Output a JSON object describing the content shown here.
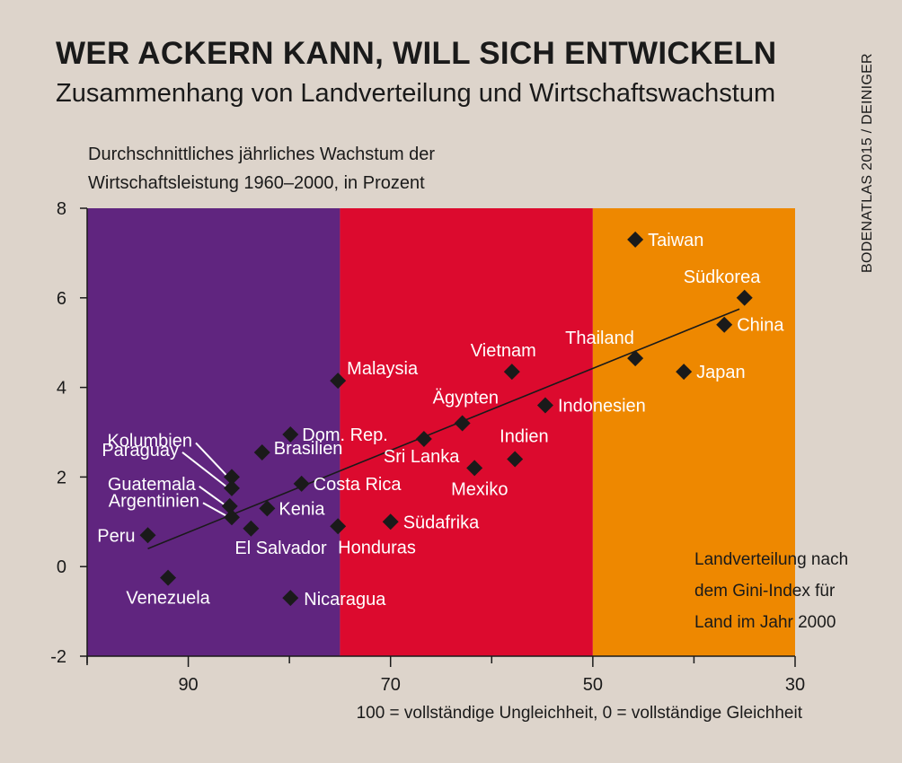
{
  "header": {
    "title": "WER ACKERN KANN, WILL SICH ENTWICKELN",
    "subtitle": "Zusammenhang von Landverteilung und Wirtschaftswachstum",
    "credit": "BODENATLAS 2015 / DEINIGER"
  },
  "chart_data": {
    "type": "scatter",
    "title": "WER ACKERN KANN, WILL SICH ENTWICKELN",
    "subtitle": "Zusammenhang von Landverteilung und Wirtschaftswachstum",
    "ylabel_lines": [
      "Durchschnittliches jährliches Wachstum der",
      "Wirtschaftsleistung 1960–2000, in Prozent"
    ],
    "xlabel": "100 = vollständige Ungleichheit, 0 = vollständige Gleichheit",
    "xlim": [
      100,
      30
    ],
    "ylim": [
      -2,
      8
    ],
    "x_ticks": [
      90,
      70,
      50,
      30
    ],
    "y_ticks": [
      -2,
      0,
      2,
      4,
      6,
      8
    ],
    "grid": false,
    "background_bands": [
      {
        "x_from": 100,
        "x_to": 75,
        "color": "#60257f"
      },
      {
        "x_from": 75,
        "x_to": 50,
        "color": "#dc0a2e"
      },
      {
        "x_from": 50,
        "x_to": 30,
        "color": "#ee8800"
      }
    ],
    "legend_lines": [
      "Landverteilung nach",
      "dem Gini-Index für",
      "Land im Jahr 2000"
    ],
    "legend_position": "bottom-right",
    "trend_line": {
      "from": [
        94,
        0.4
      ],
      "to": [
        35.5,
        5.75
      ]
    },
    "points": [
      {
        "label": "Peru",
        "x": 94,
        "y": 0.7
      },
      {
        "label": "Venezuela",
        "x": 92,
        "y": -0.25
      },
      {
        "label": "Kolumbien",
        "x": 85.7,
        "y": 2.0
      },
      {
        "label": "Paraguay",
        "x": 85.7,
        "y": 1.75
      },
      {
        "label": "Guatemala",
        "x": 85.9,
        "y": 1.35
      },
      {
        "label": "Argentinien",
        "x": 85.7,
        "y": 1.1
      },
      {
        "label": "El Salvador",
        "x": 83.8,
        "y": 0.85
      },
      {
        "label": "Brasilien",
        "x": 82.7,
        "y": 2.55
      },
      {
        "label": "Kenia",
        "x": 82.2,
        "y": 1.3
      },
      {
        "label": "Dom. Rep.",
        "x": 79.9,
        "y": 2.95
      },
      {
        "label": "Nicaragua",
        "x": 79.9,
        "y": -0.7
      },
      {
        "label": "Costa Rica",
        "x": 78.8,
        "y": 1.85
      },
      {
        "label": "Malaysia",
        "x": 75.2,
        "y": 4.15
      },
      {
        "label": "Honduras",
        "x": 75.2,
        "y": 0.9
      },
      {
        "label": "Südafrika",
        "x": 70.0,
        "y": 1.0
      },
      {
        "label": "Sri Lanka",
        "x": 66.7,
        "y": 2.85
      },
      {
        "label": "Ägypten",
        "x": 62.9,
        "y": 3.2
      },
      {
        "label": "Mexiko",
        "x": 61.7,
        "y": 2.2
      },
      {
        "label": "Vietnam",
        "x": 58.0,
        "y": 4.35
      },
      {
        "label": "Indien",
        "x": 57.7,
        "y": 2.4
      },
      {
        "label": "Indonesien",
        "x": 54.7,
        "y": 3.6
      },
      {
        "label": "Taiwan",
        "x": 45.8,
        "y": 7.3
      },
      {
        "label": "Thailand",
        "x": 45.8,
        "y": 4.65
      },
      {
        "label": "Japan",
        "x": 41.0,
        "y": 4.35
      },
      {
        "label": "China",
        "x": 37.0,
        "y": 5.4
      },
      {
        "label": "Südkorea",
        "x": 35.0,
        "y": 6.0
      }
    ]
  }
}
